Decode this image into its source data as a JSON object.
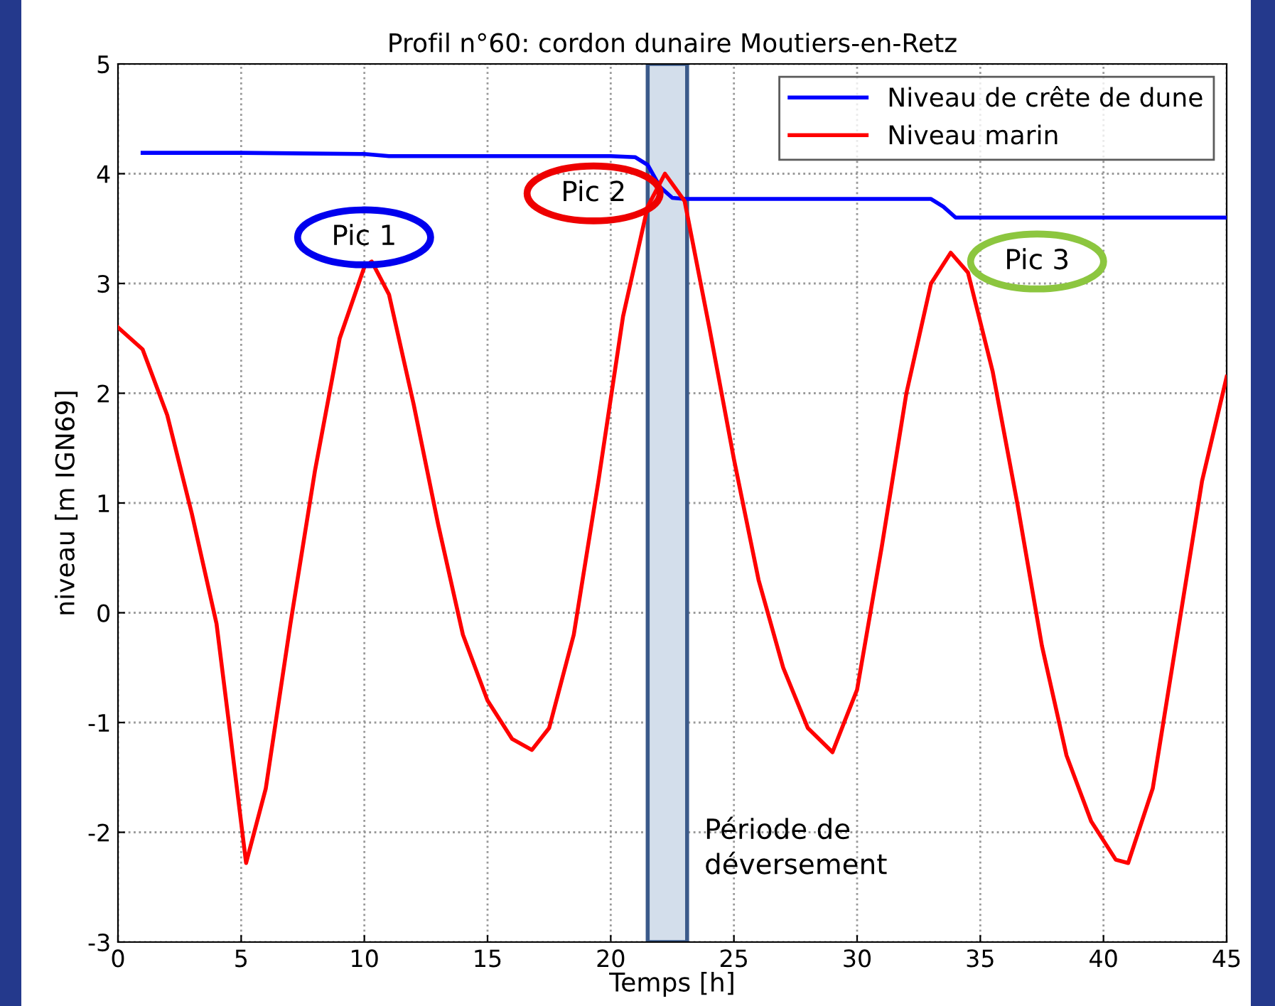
{
  "chart_data": {
    "type": "line",
    "title": "Profil n°60: cordon dunaire Moutiers-en-Retz",
    "xlabel": "Temps [h]",
    "ylabel": "niveau [m IGN69]",
    "xlim": [
      0,
      45
    ],
    "xticks": [
      0,
      5,
      10,
      15,
      20,
      25,
      30,
      35,
      40,
      45
    ],
    "ylim": [
      -3,
      5
    ],
    "yticks": [
      -3,
      -2,
      -1,
      0,
      1,
      2,
      3,
      4,
      5
    ],
    "grid": true,
    "legend": "top right",
    "line_style": "solid",
    "marker": "none",
    "series": [
      {
        "name": "Niveau de crête de dune",
        "color": "#0000ff",
        "x": [
          1,
          5,
          10,
          11,
          12,
          15,
          20,
          21,
          21.5,
          22,
          22.5,
          23,
          25,
          30,
          33,
          33.5,
          34,
          40,
          45
        ],
        "values": [
          4.19,
          4.19,
          4.18,
          4.16,
          4.16,
          4.16,
          4.16,
          4.15,
          4.08,
          3.88,
          3.78,
          3.77,
          3.77,
          3.77,
          3.77,
          3.7,
          3.6,
          3.6,
          3.6
        ]
      },
      {
        "name": "Niveau marin",
        "color": "#ff0000",
        "x": [
          0,
          1,
          2,
          3,
          4,
          4.5,
          5.2,
          6,
          7,
          8,
          9,
          10,
          10.3,
          11,
          12,
          13,
          14,
          15,
          16,
          16.8,
          17.5,
          18.5,
          19.5,
          20.5,
          21.5,
          22.2,
          23,
          24,
          25,
          26,
          27,
          28,
          29,
          30,
          31,
          32,
          33,
          33.8,
          34.5,
          35.5,
          36.5,
          37.5,
          38.5,
          39.5,
          40.5,
          41,
          42,
          43,
          44,
          45
        ],
        "values": [
          2.6,
          2.4,
          1.8,
          0.9,
          -0.1,
          -1.0,
          -2.28,
          -1.6,
          -0.1,
          1.3,
          2.5,
          3.15,
          3.2,
          2.9,
          1.9,
          0.8,
          -0.2,
          -0.8,
          -1.15,
          -1.25,
          -1.05,
          -0.2,
          1.2,
          2.7,
          3.7,
          4.0,
          3.75,
          2.6,
          1.4,
          0.3,
          -0.5,
          -1.05,
          -1.27,
          -0.7,
          0.6,
          2.0,
          3.0,
          3.28,
          3.1,
          2.2,
          1.0,
          -0.3,
          -1.3,
          -1.9,
          -2.25,
          -2.28,
          -1.6,
          -0.2,
          1.2,
          2.15
        ]
      }
    ],
    "bands": [
      {
        "axis": "x",
        "from": 21.5,
        "to": 23.1,
        "label": "Période de\ndéversement",
        "color": "#d3deeb"
      }
    ],
    "annotations": [
      "Pic 1",
      "Pic 2",
      "Pic 3"
    ]
  }
}
